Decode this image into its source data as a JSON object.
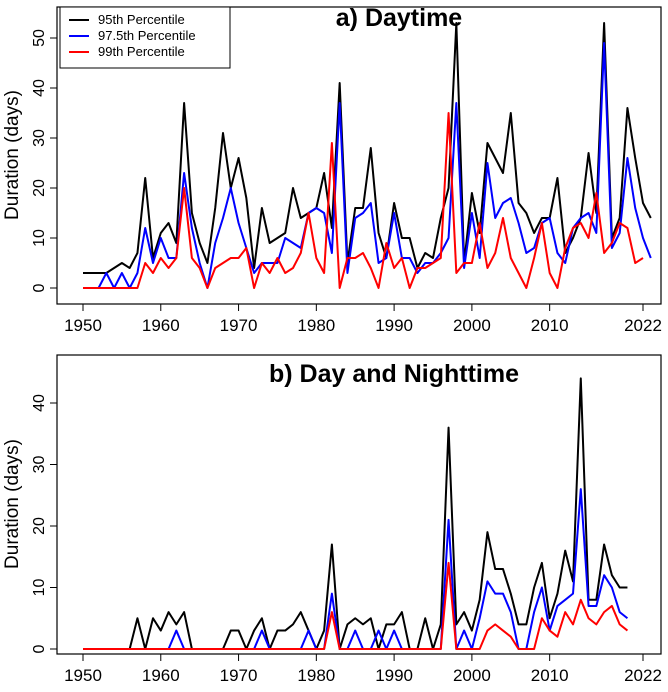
{
  "chart_data": [
    {
      "type": "line",
      "title": "a) Daytime",
      "xlabel": "",
      "ylabel": "Duration (days)",
      "xlim": [
        1950,
        2022
      ],
      "ylim": [
        0,
        53
      ],
      "xticks": [
        1950,
        1960,
        1970,
        1980,
        1990,
        2000,
        2010,
        2022
      ],
      "yticks": [
        0,
        10,
        20,
        30,
        40,
        50
      ],
      "legend_position": "top-left",
      "x_start": 1950,
      "series": [
        {
          "name": "95th Percentile",
          "color": "#000000",
          "values": [
            3,
            3,
            3,
            3,
            4,
            5,
            4,
            7,
            22,
            6,
            11,
            13,
            9,
            37,
            15,
            9,
            5,
            16,
            31,
            20,
            26,
            18,
            4,
            16,
            9,
            10,
            11,
            20,
            14,
            15,
            16,
            23,
            12,
            41,
            5,
            16,
            16,
            28,
            11,
            6,
            17,
            10,
            10,
            4,
            7,
            6,
            14,
            20,
            53,
            5,
            19,
            11,
            29,
            26,
            23,
            35,
            17,
            15,
            11,
            14,
            14,
            22,
            7,
            10,
            14,
            27,
            15,
            53,
            10,
            14,
            36,
            26,
            17,
            14
          ]
        },
        {
          "name": "97.5th Percentile",
          "color": "#0000ff",
          "values": [
            0,
            0,
            0,
            3,
            0,
            3,
            0,
            3,
            12,
            5,
            10,
            6,
            6,
            23,
            12,
            5,
            0,
            9,
            14,
            20,
            13,
            8,
            3,
            5,
            5,
            5,
            10,
            9,
            8,
            15,
            16,
            15,
            7,
            37,
            3,
            14,
            15,
            17,
            5,
            6,
            15,
            6,
            6,
            3,
            5,
            5,
            7,
            10,
            37,
            4,
            15,
            6,
            25,
            14,
            17,
            18,
            13,
            7,
            8,
            13,
            14,
            7,
            5,
            12,
            14,
            15,
            11,
            49,
            8,
            11,
            26,
            16,
            10,
            6
          ]
        },
        {
          "name": "99th Percentile",
          "color": "#ff0000",
          "values": [
            0,
            0,
            0,
            0,
            0,
            0,
            0,
            0,
            5,
            3,
            6,
            4,
            6,
            20,
            6,
            4,
            0,
            4,
            5,
            6,
            6,
            8,
            0,
            5,
            3,
            6,
            3,
            4,
            7,
            15,
            6,
            3,
            29,
            0,
            6,
            6,
            7,
            4,
            0,
            9,
            4,
            6,
            0,
            4,
            4,
            5,
            6,
            35,
            3,
            5,
            5,
            13,
            4,
            7,
            14,
            6,
            3,
            0,
            6,
            13,
            3,
            0,
            8,
            12,
            13,
            10,
            19,
            7,
            9,
            13,
            12,
            5,
            6
          ]
        }
      ]
    },
    {
      "type": "line",
      "title": "b) Day and Nighttime",
      "xlabel": "",
      "ylabel": "Duration (days)",
      "xlim": [
        1950,
        2022
      ],
      "ylim": [
        0,
        46
      ],
      "xticks": [
        1950,
        1960,
        1970,
        1980,
        1990,
        2000,
        2010,
        2022
      ],
      "yticks": [
        0,
        10,
        20,
        30,
        40
      ],
      "x_start": 1950,
      "series": [
        {
          "name": "95th Percentile",
          "color": "#000000",
          "values": [
            0,
            0,
            0,
            0,
            0,
            0,
            0,
            5,
            0,
            5,
            3,
            6,
            4,
            6,
            0,
            0,
            0,
            0,
            0,
            3,
            3,
            0,
            3,
            5,
            0,
            3,
            3,
            4,
            6,
            3,
            0,
            3,
            17,
            0,
            4,
            5,
            4,
            5,
            0,
            4,
            4,
            6,
            0,
            0,
            5,
            0,
            4,
            36,
            4,
            6,
            3,
            8,
            19,
            13,
            13,
            9,
            4,
            4,
            10,
            14,
            5,
            9,
            16,
            11,
            44,
            8,
            8,
            17,
            12,
            10,
            10
          ]
        },
        {
          "name": "97.5th Percentile",
          "color": "#0000ff",
          "values": [
            0,
            0,
            0,
            0,
            0,
            0,
            0,
            0,
            0,
            0,
            0,
            0,
            3,
            0,
            0,
            0,
            0,
            0,
            0,
            0,
            0,
            0,
            0,
            3,
            0,
            0,
            0,
            0,
            0,
            3,
            0,
            0,
            9,
            0,
            0,
            3,
            0,
            0,
            3,
            0,
            3,
            0,
            0,
            0,
            0,
            0,
            0,
            21,
            0,
            3,
            0,
            5,
            11,
            9,
            9,
            6,
            0,
            0,
            6,
            10,
            3,
            7,
            8,
            9,
            26,
            7,
            7,
            12,
            10,
            6,
            5
          ]
        },
        {
          "name": "99th Percentile",
          "color": "#ff0000",
          "values": [
            0,
            0,
            0,
            0,
            0,
            0,
            0,
            0,
            0,
            0,
            0,
            0,
            0,
            0,
            0,
            0,
            0,
            0,
            0,
            0,
            0,
            0,
            0,
            0,
            0,
            0,
            0,
            0,
            0,
            0,
            0,
            0,
            6,
            0,
            0,
            0,
            0,
            0,
            0,
            0,
            0,
            0,
            0,
            0,
            0,
            0,
            0,
            14,
            0,
            0,
            0,
            0,
            3,
            4,
            3,
            2,
            0,
            0,
            0,
            5,
            3,
            2,
            6,
            4,
            8,
            5,
            4,
            6,
            7,
            4,
            3
          ]
        }
      ]
    }
  ]
}
